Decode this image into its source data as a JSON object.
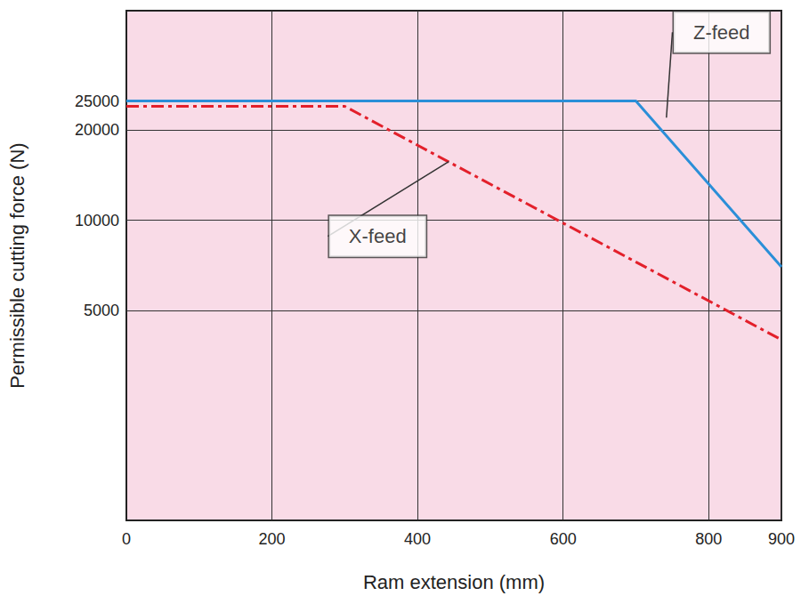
{
  "chart_data": {
    "type": "line",
    "log": "y",
    "grid": true,
    "xlabel": "Ram extension (mm)",
    "ylabel": "Permissible cutting force (N)",
    "xlim": [
      0,
      900
    ],
    "xticks": [
      0,
      200,
      400,
      600,
      800,
      900
    ],
    "ylim": [
      1000,
      50000
    ],
    "yticks": [
      5000,
      10000,
      20000,
      25000
    ],
    "series": [
      {
        "name": "Z-feed",
        "color": "#2b8fd8",
        "line_style": "solid",
        "x": [
          0,
          700,
          900
        ],
        "values": [
          25000,
          25000,
          7000
        ]
      },
      {
        "name": "X-feed",
        "color": "#e3202b",
        "line_style": "dashdot",
        "x": [
          0,
          300,
          900
        ],
        "values": [
          24000,
          24000,
          4000
        ]
      }
    ],
    "annotations": [
      {
        "text": "Z-feed",
        "x": 742,
        "y": 22000
      },
      {
        "text": "X-feed",
        "x": 443,
        "y": 15700
      }
    ]
  }
}
